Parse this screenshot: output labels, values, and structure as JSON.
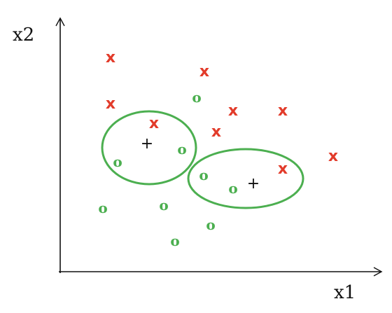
{
  "axes": {
    "x_label": "x1",
    "y_label": "x2"
  },
  "x_marker": {
    "glyph": "x",
    "color": "#e23b2a"
  },
  "o_marker": {
    "glyph": "o",
    "color": "#4caf50"
  },
  "center_marker": {
    "glyph": "+",
    "color": "#111111"
  },
  "ellipse_color": "#4caf50",
  "axis_color": "#111111"
}
